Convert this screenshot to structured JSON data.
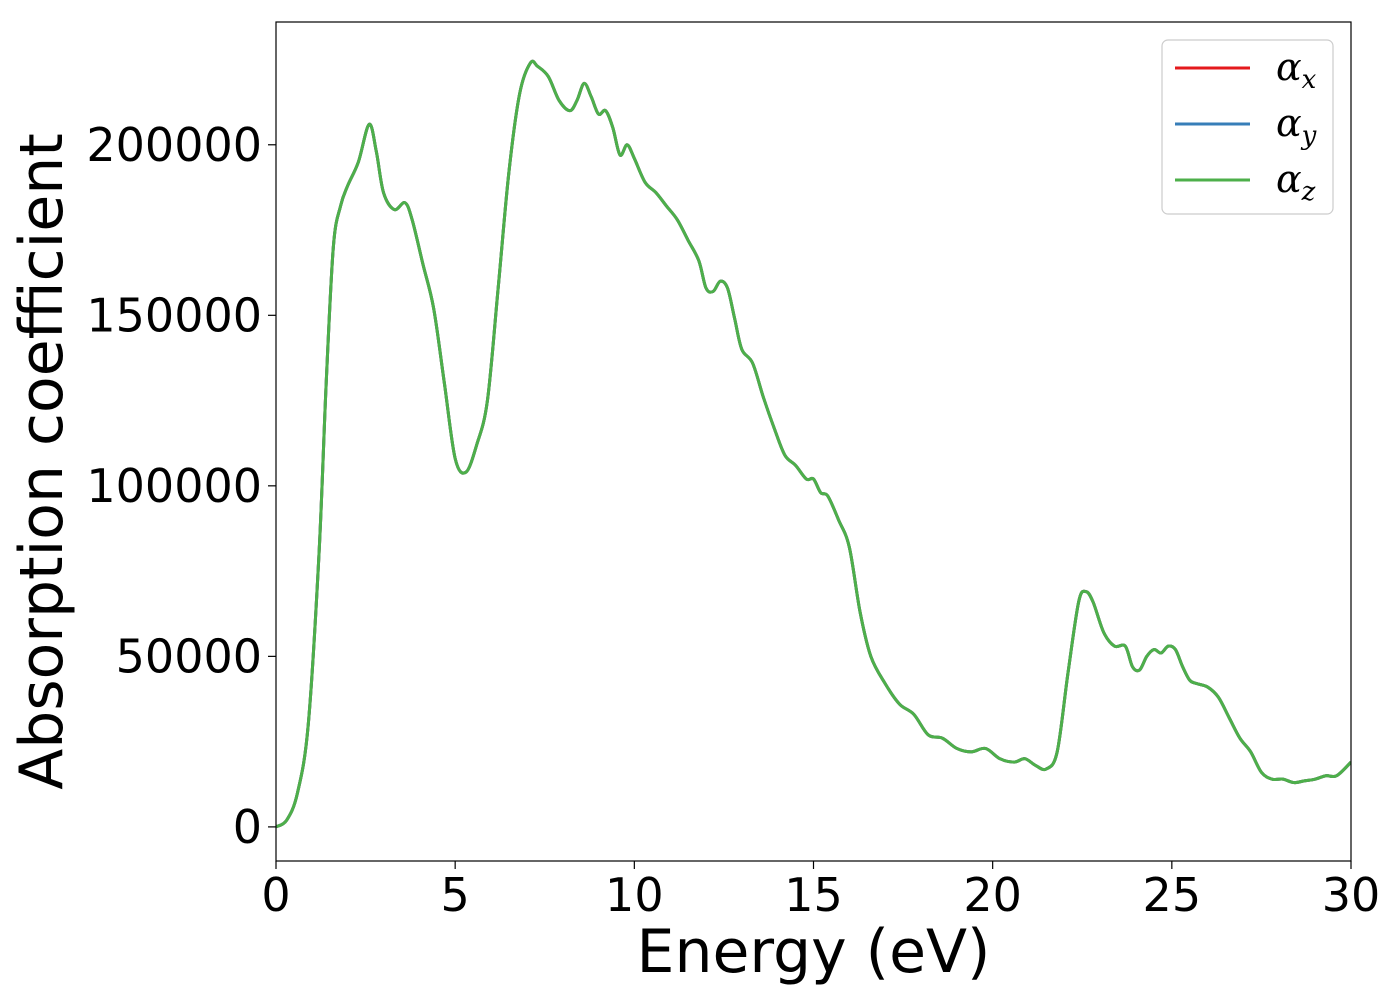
{
  "chart_data": {
    "type": "line",
    "title": "",
    "xlabel": "Energy (eV)",
    "ylabel": "Absorption coefficient",
    "xlim": [
      0,
      30
    ],
    "ylim": [
      -10000,
      236000
    ],
    "xticks": [
      0,
      5,
      10,
      15,
      20,
      25,
      30
    ],
    "xtick_labels": [
      "0",
      "5",
      "10",
      "15",
      "20",
      "25",
      "30"
    ],
    "yticks": [
      0,
      50000,
      100000,
      150000,
      200000
    ],
    "ytick_labels": [
      "0",
      "50000",
      "100000",
      "150000",
      "200000"
    ],
    "grid": false,
    "legend_position": "top-right",
    "colors": {
      "alpha_x": "#e41a1c",
      "alpha_y": "#377eb8",
      "alpha_z": "#4daf4a"
    },
    "x": [
      0,
      0.3,
      0.6,
      0.9,
      1.2,
      1.4,
      1.6,
      1.8,
      2.0,
      2.3,
      2.6,
      2.8,
      3.0,
      3.3,
      3.6,
      3.8,
      4.1,
      4.4,
      4.7,
      5.0,
      5.3,
      5.6,
      5.9,
      6.2,
      6.5,
      6.8,
      7.1,
      7.3,
      7.6,
      7.9,
      8.2,
      8.4,
      8.6,
      8.8,
      9.0,
      9.2,
      9.4,
      9.6,
      9.8,
      10.0,
      10.3,
      10.6,
      10.9,
      11.2,
      11.5,
      11.8,
      12.0,
      12.2,
      12.4,
      12.6,
      12.8,
      13.0,
      13.3,
      13.6,
      13.9,
      14.2,
      14.5,
      14.8,
      15.0,
      15.2,
      15.4,
      15.7,
      16.0,
      16.3,
      16.6,
      17.0,
      17.4,
      17.8,
      18.2,
      18.6,
      19.0,
      19.4,
      19.8,
      20.2,
      20.6,
      20.9,
      21.2,
      21.5,
      21.8,
      22.1,
      22.4,
      22.6,
      22.8,
      23.1,
      23.4,
      23.7,
      23.9,
      24.1,
      24.3,
      24.5,
      24.7,
      24.9,
      25.1,
      25.3,
      25.5,
      25.7,
      26.0,
      26.3,
      26.6,
      26.9,
      27.2,
      27.5,
      27.8,
      28.1,
      28.4,
      28.7,
      29.0,
      29.3,
      29.6,
      30.0
    ],
    "series": [
      {
        "name": "α_x",
        "symbol": "α",
        "subscript": "x",
        "color": "#e41a1c",
        "values": [
          0,
          2000,
          10000,
          30000,
          80000,
          130000,
          170000,
          182000,
          188000,
          195000,
          206000,
          198000,
          186000,
          181000,
          183000,
          178000,
          165000,
          152000,
          130000,
          108000,
          104000,
          112000,
          125000,
          158000,
          192000,
          215000,
          224000,
          223000,
          220000,
          213000,
          210000,
          213000,
          218000,
          214000,
          209000,
          210000,
          205000,
          197000,
          200000,
          196000,
          189000,
          186000,
          182000,
          178000,
          172000,
          166000,
          158000,
          157000,
          160000,
          158000,
          149000,
          140000,
          136000,
          126000,
          117000,
          109000,
          106000,
          102000,
          102000,
          98000,
          97000,
          90000,
          82000,
          63000,
          50000,
          42000,
          36000,
          33000,
          27000,
          26000,
          23000,
          22000,
          23000,
          20000,
          19000,
          20000,
          18000,
          17000,
          22000,
          45000,
          66000,
          69000,
          66000,
          57000,
          53000,
          53000,
          47000,
          46000,
          50000,
          52000,
          51000,
          53000,
          52000,
          47000,
          43000,
          42000,
          41000,
          38000,
          32000,
          26000,
          22000,
          16000,
          14000,
          14000,
          13000,
          13500,
          14000,
          15000,
          15000,
          19000
        ]
      },
      {
        "name": "α_y",
        "symbol": "α",
        "subscript": "y",
        "color": "#377eb8",
        "values": [
          0,
          2000,
          10000,
          30000,
          80000,
          130000,
          170000,
          182000,
          188000,
          195000,
          206000,
          198000,
          186000,
          181000,
          183000,
          178000,
          165000,
          152000,
          130000,
          108000,
          104000,
          112000,
          125000,
          158000,
          192000,
          215000,
          224000,
          223000,
          220000,
          213000,
          210000,
          213000,
          218000,
          214000,
          209000,
          210000,
          205000,
          197000,
          200000,
          196000,
          189000,
          186000,
          182000,
          178000,
          172000,
          166000,
          158000,
          157000,
          160000,
          158000,
          149000,
          140000,
          136000,
          126000,
          117000,
          109000,
          106000,
          102000,
          102000,
          98000,
          97000,
          90000,
          82000,
          63000,
          50000,
          42000,
          36000,
          33000,
          27000,
          26000,
          23000,
          22000,
          23000,
          20000,
          19000,
          20000,
          18000,
          17000,
          22000,
          45000,
          66000,
          69000,
          66000,
          57000,
          53000,
          53000,
          47000,
          46000,
          50000,
          52000,
          51000,
          53000,
          52000,
          47000,
          43000,
          42000,
          41000,
          38000,
          32000,
          26000,
          22000,
          16000,
          14000,
          14000,
          13000,
          13500,
          14000,
          15000,
          15000,
          19000
        ]
      },
      {
        "name": "α_z",
        "symbol": "α",
        "subscript": "z",
        "color": "#4daf4a",
        "values": [
          0,
          2000,
          10000,
          30000,
          80000,
          130000,
          170000,
          182000,
          188000,
          195000,
          206000,
          198000,
          186000,
          181000,
          183000,
          178000,
          165000,
          152000,
          130000,
          108000,
          104000,
          112000,
          125000,
          158000,
          192000,
          215000,
          224000,
          223000,
          220000,
          213000,
          210000,
          213000,
          218000,
          214000,
          209000,
          210000,
          205000,
          197000,
          200000,
          196000,
          189000,
          186000,
          182000,
          178000,
          172000,
          166000,
          158000,
          157000,
          160000,
          158000,
          149000,
          140000,
          136000,
          126000,
          117000,
          109000,
          106000,
          102000,
          102000,
          98000,
          97000,
          90000,
          82000,
          63000,
          50000,
          42000,
          36000,
          33000,
          27000,
          26000,
          23000,
          22000,
          23000,
          20000,
          19000,
          20000,
          18000,
          17000,
          22000,
          45000,
          66000,
          69000,
          66000,
          57000,
          53000,
          53000,
          47000,
          46000,
          50000,
          52000,
          51000,
          53000,
          52000,
          47000,
          43000,
          42000,
          41000,
          38000,
          32000,
          26000,
          22000,
          16000,
          14000,
          14000,
          13000,
          13500,
          14000,
          15000,
          15000,
          19000
        ]
      }
    ]
  }
}
